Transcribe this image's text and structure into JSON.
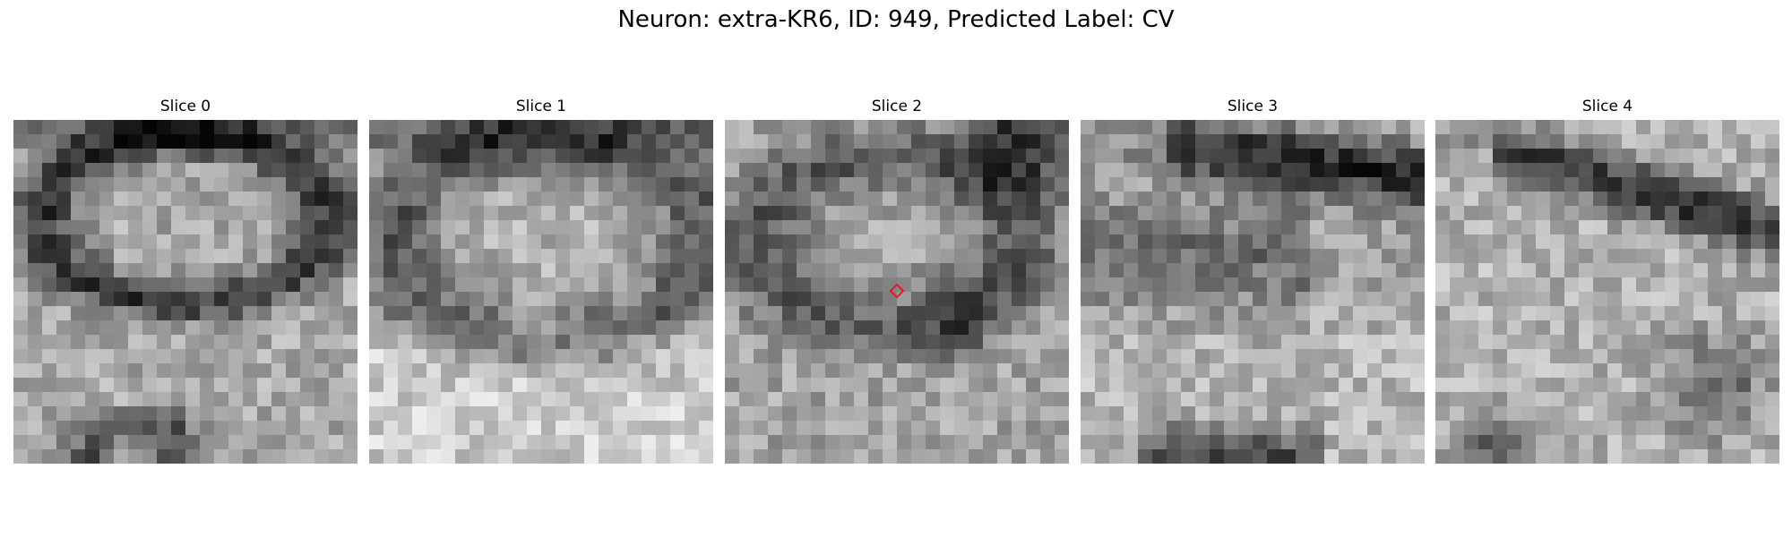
{
  "figure": {
    "title": "Neuron: extra-KR6, ID: 949, Predicted Label: CV"
  },
  "slices": [
    {
      "label": "Slice 0"
    },
    {
      "label": "Slice 1"
    },
    {
      "label": "Slice 2"
    },
    {
      "label": "Slice 3"
    },
    {
      "label": "Slice 4"
    }
  ],
  "marker": {
    "slice_index": 2,
    "color": "#e41a1c",
    "shape": "diamond"
  },
  "colormap": "gray"
}
